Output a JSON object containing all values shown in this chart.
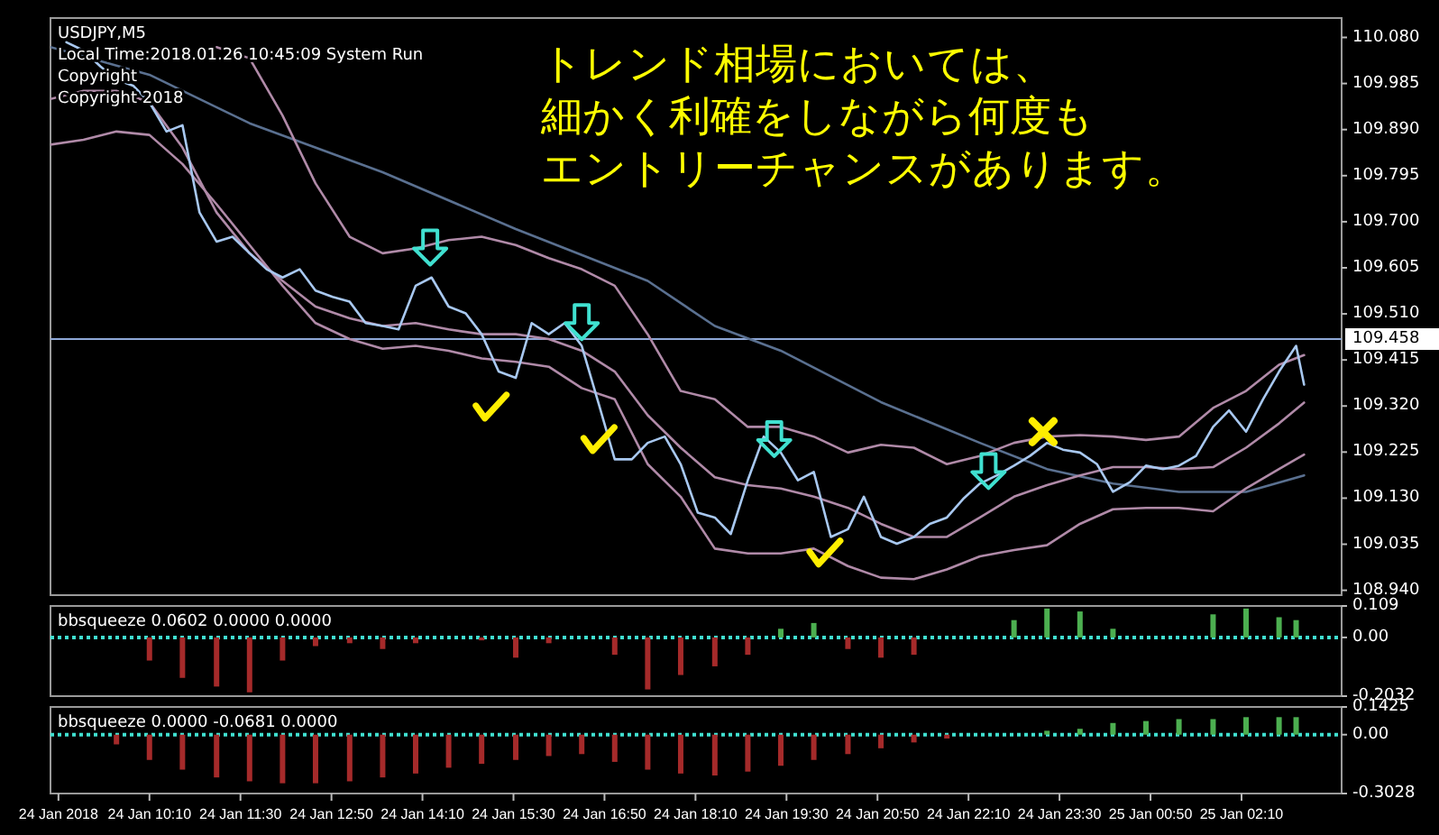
{
  "chart_data": [
    {
      "type": "line",
      "title": "USDJPY,M5",
      "annotations": [
        "Local Time:2018.01.26 10:45:09 System Run",
        "Copyright",
        "Copyright 2018",
        "トレンド相場においては、",
        "細かく利確をしながら何度も",
        "エントリーチャンスがあります。"
      ],
      "xlim": [
        "2018-01-24T08:43",
        "2018-01-25T03:38"
      ],
      "ylim": [
        108.93,
        110.12
      ],
      "yticks": [
        {
          "value": 110.08,
          "label": "110.080"
        },
        109.985,
        {
          "value": 109.89,
          "label": "109.890"
        },
        109.795,
        {
          "value": 109.7,
          "label": "109.700"
        },
        109.605,
        {
          "value": 109.51,
          "label": "109.510"
        },
        109.415,
        {
          "value": 109.32,
          "label": "109.320"
        },
        109.225,
        {
          "value": 109.13,
          "label": "109.130"
        },
        109.035,
        {
          "value": 108.94,
          "label": "108.940"
        }
      ],
      "tick_labels": "y",
      "ref_lines": [
        {
          "axis": "y",
          "value": 109.458,
          "label": "109.458",
          "color": "#8fa8d8"
        }
      ],
      "series": [
        {
          "color": "#5a7090",
          "x": [
            "2018-01-24T08:43",
            "2018-01-24T10:10",
            "2018-01-24T11:38",
            "2018-01-24T13:35",
            "2018-01-24T15:32",
            "2018-01-24T17:28",
            "2018-01-24T18:27",
            "2018-01-24T19:25",
            "2018-01-24T20:53",
            "2018-01-24T22:20",
            "2018-01-24T23:19",
            "2018-01-25T00:17",
            "2018-01-25T01:15",
            "2018-01-25T02:14",
            "2018-01-25T03:05"
          ],
          "values": [
            110.06,
            110.003,
            109.903,
            109.802,
            109.685,
            109.578,
            109.485,
            109.434,
            109.328,
            109.244,
            109.19,
            109.16,
            109.143,
            109.143,
            109.177
          ]
        },
        {
          "color": "#b08aa8",
          "x": [
            "2018-01-24T11:09",
            "2018-01-24T11:38",
            "2018-01-24T12:07",
            "2018-01-24T12:36",
            "2018-01-24T13:06",
            "2018-01-24T13:35",
            "2018-01-24T14:04",
            "2018-01-24T14:33",
            "2018-01-24T15:02",
            "2018-01-24T15:32",
            "2018-01-24T16:01",
            "2018-01-24T16:30",
            "2018-01-24T16:59",
            "2018-01-24T17:28",
            "2018-01-24T17:57",
            "2018-01-24T18:27",
            "2018-01-24T18:56",
            "2018-01-24T19:25",
            "2018-01-24T19:54",
            "2018-01-24T20:24",
            "2018-01-24T20:53",
            "2018-01-24T21:22",
            "2018-01-24T21:51",
            "2018-01-24T22:20",
            "2018-01-24T22:50",
            "2018-01-24T23:19",
            "2018-01-24T23:48",
            "2018-01-25T00:17",
            "2018-01-25T00:46",
            "2018-01-25T01:15",
            "2018-01-25T01:45",
            "2018-01-25T02:14",
            "2018-01-25T02:43",
            "2018-01-25T03:05"
          ],
          "values": [
            110.06,
            110.037,
            109.919,
            109.779,
            109.669,
            109.635,
            109.645,
            109.662,
            109.669,
            109.652,
            109.625,
            109.602,
            109.568,
            109.468,
            109.351,
            109.334,
            109.277,
            109.277,
            109.257,
            109.224,
            109.24,
            109.234,
            109.2,
            109.217,
            109.244,
            109.257,
            109.26,
            109.257,
            109.25,
            109.257,
            109.316,
            109.351,
            109.405,
            109.425
          ]
        },
        {
          "color": "#b08aa8",
          "x": [
            "2018-01-24T08:43",
            "2018-01-24T09:12",
            "2018-01-24T09:41",
            "2018-01-24T10:10",
            "2018-01-24T10:39",
            "2018-01-24T11:09",
            "2018-01-24T11:38",
            "2018-01-24T12:07",
            "2018-01-24T12:36",
            "2018-01-24T13:06",
            "2018-01-24T13:35",
            "2018-01-24T14:04",
            "2018-01-24T14:33",
            "2018-01-24T15:02",
            "2018-01-24T15:32",
            "2018-01-24T16:01",
            "2018-01-24T16:30",
            "2018-01-24T16:59",
            "2018-01-24T17:28",
            "2018-01-24T17:57",
            "2018-01-24T18:27",
            "2018-01-24T18:56",
            "2018-01-24T19:25",
            "2018-01-24T19:54",
            "2018-01-24T20:24",
            "2018-01-24T20:53",
            "2018-01-24T21:22",
            "2018-01-24T21:51",
            "2018-01-24T22:20",
            "2018-01-24T22:50",
            "2018-01-24T23:19",
            "2018-01-24T23:48",
            "2018-01-25T00:17",
            "2018-01-25T00:46",
            "2018-01-25T01:15",
            "2018-01-25T01:45",
            "2018-01-25T02:14",
            "2018-01-25T02:43",
            "2018-01-25T03:05"
          ],
          "values": [
            109.953,
            109.97,
            109.97,
            109.946,
            109.853,
            109.719,
            109.635,
            109.578,
            109.525,
            109.501,
            109.485,
            109.491,
            109.478,
            109.468,
            109.468,
            109.458,
            109.434,
            109.391,
            109.301,
            109.234,
            109.173,
            109.157,
            109.15,
            109.133,
            109.11,
            109.077,
            109.05,
            109.05,
            109.09,
            109.133,
            109.157,
            109.177,
            109.194,
            109.194,
            109.19,
            109.194,
            109.234,
            109.284,
            109.327
          ]
        },
        {
          "color": "#b08aa8",
          "x": [
            "2018-01-24T08:43",
            "2018-01-24T09:12",
            "2018-01-24T09:41",
            "2018-01-24T10:10",
            "2018-01-24T10:39",
            "2018-01-24T11:09",
            "2018-01-24T11:38",
            "2018-01-24T12:07",
            "2018-01-24T12:36",
            "2018-01-24T13:06",
            "2018-01-24T13:35",
            "2018-01-24T14:04",
            "2018-01-24T14:33",
            "2018-01-24T15:02",
            "2018-01-24T15:32",
            "2018-01-24T16:01",
            "2018-01-24T16:30",
            "2018-01-24T16:59",
            "2018-01-24T17:28",
            "2018-01-24T17:57",
            "2018-01-24T18:27",
            "2018-01-24T18:56",
            "2018-01-24T19:25",
            "2018-01-24T19:54",
            "2018-01-24T20:24",
            "2018-01-24T20:53",
            "2018-01-24T21:22",
            "2018-01-24T21:51",
            "2018-01-24T22:20",
            "2018-01-24T22:50",
            "2018-01-24T23:19",
            "2018-01-24T23:48",
            "2018-01-25T00:17",
            "2018-01-25T00:46",
            "2018-01-25T01:15",
            "2018-01-25T01:45",
            "2018-01-25T02:14",
            "2018-01-25T02:43",
            "2018-01-25T03:05"
          ],
          "values": [
            109.859,
            109.869,
            109.886,
            109.879,
            109.819,
            109.736,
            109.652,
            109.568,
            109.491,
            109.458,
            109.438,
            109.444,
            109.434,
            109.418,
            109.411,
            109.401,
            109.357,
            109.334,
            109.2,
            109.133,
            109.026,
            109.016,
            109.016,
            109.026,
            108.99,
            108.966,
            108.963,
            108.983,
            109.01,
            109.023,
            109.033,
            109.077,
            109.107,
            109.11,
            109.11,
            109.103,
            109.15,
            109.19,
            109.22
          ]
        },
        {
          "color": "#a8c8f0",
          "x": [
            "2018-01-24T08:57",
            "2018-01-24T09:12",
            "2018-01-24T09:27",
            "2018-01-24T09:41",
            "2018-01-24T09:56",
            "2018-01-24T10:10",
            "2018-01-24T10:25",
            "2018-01-24T10:39",
            "2018-01-24T10:54",
            "2018-01-24T11:09",
            "2018-01-24T11:23",
            "2018-01-24T11:38",
            "2018-01-24T11:53",
            "2018-01-24T12:07",
            "2018-01-24T12:22",
            "2018-01-24T12:36",
            "2018-01-24T12:51",
            "2018-01-24T13:06",
            "2018-01-24T13:20",
            "2018-01-24T13:35",
            "2018-01-24T13:49",
            "2018-01-24T14:04",
            "2018-01-24T14:18",
            "2018-01-24T14:33",
            "2018-01-24T14:48",
            "2018-01-24T15:02",
            "2018-01-24T15:17",
            "2018-01-24T15:32",
            "2018-01-24T15:46",
            "2018-01-24T16:01",
            "2018-01-24T16:15",
            "2018-01-24T16:30",
            "2018-01-24T16:45",
            "2018-01-24T16:59",
            "2018-01-24T17:14",
            "2018-01-24T17:28",
            "2018-01-24T17:43",
            "2018-01-24T17:57",
            "2018-01-24T18:12",
            "2018-01-24T18:27",
            "2018-01-24T18:41",
            "2018-01-24T18:56",
            "2018-01-24T19:10",
            "2018-01-24T19:25",
            "2018-01-24T19:40",
            "2018-01-24T19:54",
            "2018-01-24T20:09",
            "2018-01-24T20:24",
            "2018-01-24T20:38",
            "2018-01-24T20:53",
            "2018-01-24T21:07",
            "2018-01-24T21:22",
            "2018-01-24T21:36",
            "2018-01-24T21:51",
            "2018-01-24T22:06",
            "2018-01-24T22:20",
            "2018-01-24T22:35",
            "2018-01-24T22:50",
            "2018-01-24T23:04",
            "2018-01-24T23:19",
            "2018-01-24T23:33",
            "2018-01-24T23:48",
            "2018-01-25T00:03",
            "2018-01-25T00:17",
            "2018-01-25T00:32",
            "2018-01-25T00:46",
            "2018-01-25T01:01",
            "2018-01-25T01:15",
            "2018-01-25T01:30",
            "2018-01-25T01:45",
            "2018-01-25T01:59",
            "2018-01-25T02:14",
            "2018-01-25T02:29",
            "2018-01-25T02:43",
            "2018-01-25T02:58",
            "2018-01-25T03:05"
          ],
          "values": [
            110.07,
            110.053,
            110.02,
            109.993,
            109.98,
            109.946,
            109.886,
            109.899,
            109.719,
            109.659,
            109.669,
            109.635,
            109.602,
            109.585,
            109.602,
            109.558,
            109.545,
            109.535,
            109.491,
            109.485,
            109.478,
            109.568,
            109.585,
            109.525,
            109.511,
            109.468,
            109.391,
            109.378,
            109.491,
            109.468,
            109.491,
            109.444,
            109.324,
            109.21,
            109.21,
            109.244,
            109.257,
            109.2,
            109.1,
            109.09,
            109.056,
            109.167,
            109.257,
            109.224,
            109.167,
            109.184,
            109.05,
            109.066,
            109.133,
            109.05,
            109.036,
            109.05,
            109.077,
            109.09,
            109.13,
            109.16,
            109.177,
            109.197,
            109.217,
            109.244,
            109.23,
            109.224,
            109.2,
            109.143,
            109.163,
            109.197,
            109.19,
            109.197,
            109.217,
            109.277,
            109.311,
            109.267,
            109.334,
            109.391,
            109.444,
            109.364
          ]
        }
      ]
    },
    {
      "type": "bar",
      "title": "bbsqueeze 0.0602 0.0000 0.0000",
      "xlim": [
        "2018-01-24T08:43",
        "2018-01-25T03:38"
      ],
      "ylim": [
        -0.2032,
        0.109
      ],
      "yticks": [
        0.109,
        {
          "value": 0,
          "label": "0.00"
        },
        -0.2032
      ],
      "tick_labels": "y",
      "ref_lines": [
        {
          "axis": "y",
          "value": 0,
          "color": "#40e0d0",
          "line_style": "dotted"
        }
      ],
      "series": [
        {
          "x": [
            "2018-01-24T09:12",
            "2018-01-24T09:41",
            "2018-01-24T10:10",
            "2018-01-24T10:39",
            "2018-01-24T11:09",
            "2018-01-24T11:38",
            "2018-01-24T12:07",
            "2018-01-24T12:36",
            "2018-01-24T13:06",
            "2018-01-24T13:35",
            "2018-01-24T14:04",
            "2018-01-24T14:33",
            "2018-01-24T15:02",
            "2018-01-24T15:32",
            "2018-01-24T16:01",
            "2018-01-24T16:30",
            "2018-01-24T16:59",
            "2018-01-24T17:28",
            "2018-01-24T17:57",
            "2018-01-24T18:27",
            "2018-01-24T18:56",
            "2018-01-24T19:25",
            "2018-01-24T19:54",
            "2018-01-24T20:24",
            "2018-01-24T20:53",
            "2018-01-24T21:22",
            "2018-01-24T21:51",
            "2018-01-24T22:20",
            "2018-01-24T22:50",
            "2018-01-24T23:19",
            "2018-01-24T23:48",
            "2018-01-25T00:17",
            "2018-01-25T00:46",
            "2018-01-25T01:15",
            "2018-01-25T01:45",
            "2018-01-25T02:14",
            "2018-01-25T02:43",
            "2018-01-25T02:58"
          ],
          "values": [
            0,
            0,
            -0.08,
            -0.14,
            -0.17,
            -0.19,
            -0.08,
            -0.03,
            -0.02,
            -0.04,
            -0.02,
            0,
            -0.01,
            -0.07,
            -0.02,
            0,
            -0.06,
            -0.18,
            -0.13,
            -0.1,
            -0.06,
            0.03,
            0.05,
            -0.04,
            -0.07,
            -0.06,
            0,
            0,
            0.06,
            0.1,
            0.09,
            0.03,
            0,
            0,
            0.08,
            0.1,
            0.07,
            0.06
          ],
          "colors": [
            "#a52a2a",
            "#a52a2a",
            "#a52a2a",
            "#a52a2a",
            "#a52a2a",
            "#a52a2a",
            "#a52a2a",
            "#a52a2a",
            "#a52a2a",
            "#a52a2a",
            "#a52a2a",
            "#a52a2a",
            "#a52a2a",
            "#a52a2a",
            "#a52a2a",
            "#a52a2a",
            "#a52a2a",
            "#a52a2a",
            "#a52a2a",
            "#a52a2a",
            "#a52a2a",
            "#4caf50",
            "#4caf50",
            "#a52a2a",
            "#a52a2a",
            "#a52a2a",
            "#4caf50",
            "#4caf50",
            "#4caf50",
            "#4caf50",
            "#4caf50",
            "#4caf50",
            "#4caf50",
            "#4caf50",
            "#4caf50",
            "#4caf50",
            "#4caf50",
            "#4caf50"
          ]
        }
      ]
    },
    {
      "type": "bar",
      "title": "bbsqueeze 0.0000 -0.0681 0.0000",
      "xlim": [
        "2018-01-24T08:43",
        "2018-01-25T03:38"
      ],
      "ylim": [
        -0.3028,
        0.1425
      ],
      "yticks": [
        0.1425,
        {
          "value": 0,
          "label": "0.00"
        },
        -0.3028
      ],
      "xticks": [
        {
          "value": "2018-01-24T08:50",
          "label": "24 Jan 2018"
        },
        {
          "value": "2018-01-24T10:10",
          "label": "24 Jan 10:10"
        },
        {
          "value": "2018-01-24T11:30",
          "label": "24 Jan 11:30"
        },
        {
          "value": "2018-01-24T12:50",
          "label": "24 Jan 12:50"
        },
        {
          "value": "2018-01-24T14:10",
          "label": "24 Jan 14:10"
        },
        {
          "value": "2018-01-24T15:30",
          "label": "24 Jan 15:30"
        },
        {
          "value": "2018-01-24T16:50",
          "label": "24 Jan 16:50"
        },
        {
          "value": "2018-01-24T18:10",
          "label": "24 Jan 18:10"
        },
        {
          "value": "2018-01-24T19:30",
          "label": "24 Jan 19:30"
        },
        {
          "value": "2018-01-24T20:50",
          "label": "24 Jan 20:50"
        },
        {
          "value": "2018-01-24T22:10",
          "label": "24 Jan 22:10"
        },
        {
          "value": "2018-01-24T23:30",
          "label": "24 Jan 23:30"
        },
        {
          "value": "2018-01-25T00:50",
          "label": "25 Jan 00:50"
        },
        {
          "value": "2018-01-25T02:10",
          "label": "25 Jan 02:10"
        }
      ],
      "ref_lines": [
        {
          "axis": "y",
          "value": 0,
          "color": "#40e0d0",
          "line_style": "dotted"
        }
      ],
      "series": [
        {
          "x": [
            "2018-01-24T09:12",
            "2018-01-24T09:41",
            "2018-01-24T10:10",
            "2018-01-24T10:39",
            "2018-01-24T11:09",
            "2018-01-24T11:38",
            "2018-01-24T12:07",
            "2018-01-24T12:36",
            "2018-01-24T13:06",
            "2018-01-24T13:35",
            "2018-01-24T14:04",
            "2018-01-24T14:33",
            "2018-01-24T15:02",
            "2018-01-24T15:32",
            "2018-01-24T16:01",
            "2018-01-24T16:30",
            "2018-01-24T16:59",
            "2018-01-24T17:28",
            "2018-01-24T17:57",
            "2018-01-24T18:27",
            "2018-01-24T18:56",
            "2018-01-24T19:25",
            "2018-01-24T19:54",
            "2018-01-24T20:24",
            "2018-01-24T20:53",
            "2018-01-24T21:22",
            "2018-01-24T21:51",
            "2018-01-24T22:20",
            "2018-01-24T22:50",
            "2018-01-24T23:19",
            "2018-01-24T23:48",
            "2018-01-25T00:17",
            "2018-01-25T00:46",
            "2018-01-25T01:15",
            "2018-01-25T01:45",
            "2018-01-25T02:14",
            "2018-01-25T02:43",
            "2018-01-25T02:58"
          ],
          "values": [
            0,
            -0.05,
            -0.13,
            -0.18,
            -0.22,
            -0.24,
            -0.25,
            -0.25,
            -0.24,
            -0.22,
            -0.2,
            -0.17,
            -0.15,
            -0.13,
            -0.11,
            -0.1,
            -0.14,
            -0.18,
            -0.2,
            -0.21,
            -0.19,
            -0.16,
            -0.13,
            -0.1,
            -0.07,
            -0.04,
            -0.02,
            0,
            0,
            0.02,
            0.03,
            0.06,
            0.07,
            0.08,
            0.08,
            0.09,
            0.09,
            0.09
          ],
          "colors": [
            "#a52a2a",
            "#a52a2a",
            "#a52a2a",
            "#a52a2a",
            "#a52a2a",
            "#a52a2a",
            "#a52a2a",
            "#a52a2a",
            "#a52a2a",
            "#a52a2a",
            "#a52a2a",
            "#a52a2a",
            "#a52a2a",
            "#a52a2a",
            "#a52a2a",
            "#a52a2a",
            "#a52a2a",
            "#a52a2a",
            "#a52a2a",
            "#a52a2a",
            "#a52a2a",
            "#a52a2a",
            "#a52a2a",
            "#a52a2a",
            "#a52a2a",
            "#a52a2a",
            "#a52a2a",
            "#4caf50",
            "#4caf50",
            "#4caf50",
            "#4caf50",
            "#4caf50",
            "#4caf50",
            "#4caf50",
            "#4caf50",
            "#4caf50",
            "#4caf50",
            "#4caf50"
          ]
        }
      ]
    }
  ]
}
